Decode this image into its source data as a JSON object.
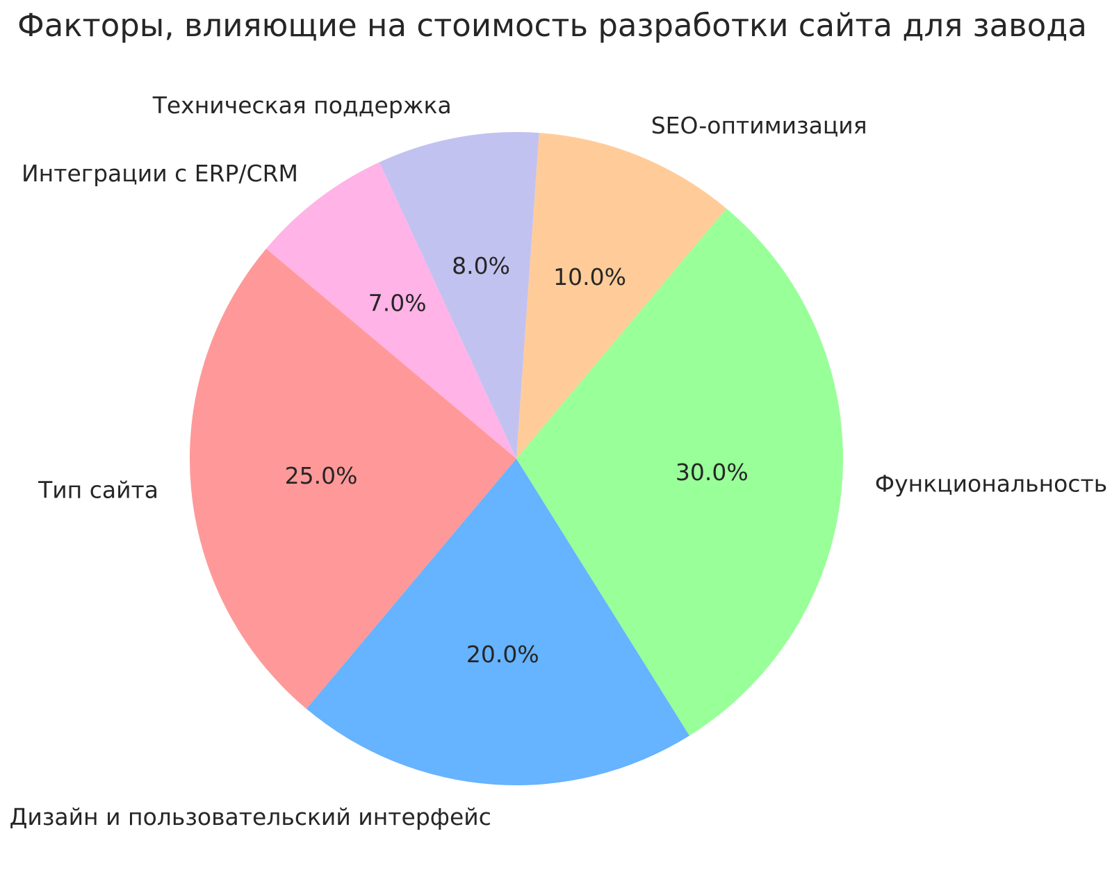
{
  "page": {
    "background": "#ffffff"
  },
  "chart_data": {
    "type": "pie",
    "title": "Факторы, влияющие на стоимость разработки сайта для завода",
    "start_angle_deg": 86,
    "direction": "counterclockwise",
    "legend": "none",
    "title_color": "#262626",
    "text_color": "#262626",
    "background": "#ffffff",
    "slices": [
      {
        "label": "Техническая поддержка",
        "value": 8,
        "pct_label": "8.0%",
        "color": "#c2c2f0"
      },
      {
        "label": "Интеграции с ERP/CRM",
        "value": 7,
        "pct_label": "7.0%",
        "color": "#ffb3e6"
      },
      {
        "label": "Тип сайта",
        "value": 25,
        "pct_label": "25.0%",
        "color": "#ff9999"
      },
      {
        "label": "Дизайн и пользовательский интерфейс",
        "value": 20,
        "pct_label": "20.0%",
        "color": "#66b3ff"
      },
      {
        "label": "Функциональность",
        "value": 30,
        "pct_label": "30.0%",
        "color": "#99ff99"
      },
      {
        "label": "SEO-оптимизация",
        "value": 10,
        "pct_label": "10.0%",
        "color": "#ffcc99"
      }
    ]
  }
}
